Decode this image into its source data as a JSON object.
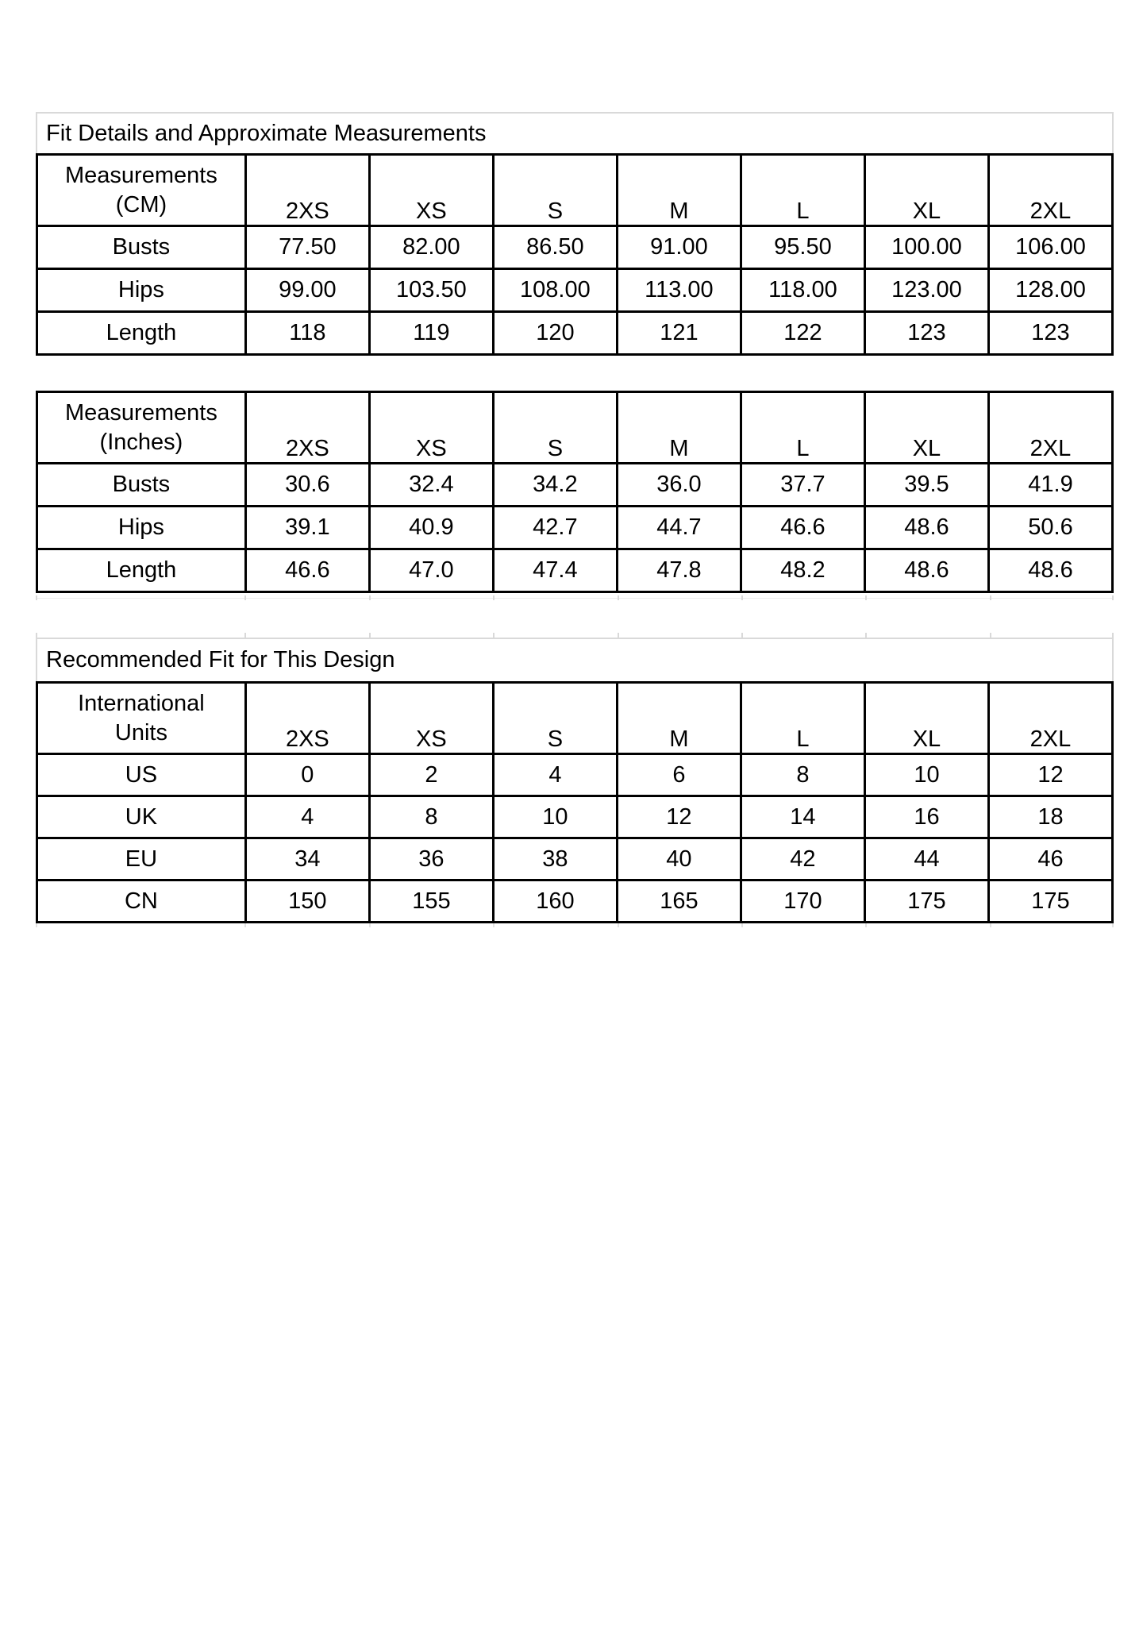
{
  "document": {
    "background": "#ffffff",
    "colors": {
      "table_border": "#000000",
      "title_box_border": "#d9d9d9",
      "gridline_remnant": "#ececec",
      "text": "#000000"
    }
  },
  "tables": [
    {
      "title": "Fit Details and Approximate Measurements",
      "header": {
        "line1": "Measurements",
        "line2": "(CM)"
      },
      "sizes": [
        "2XS",
        "XS",
        "S",
        "M",
        "L",
        "XL",
        "2XL"
      ],
      "rows": [
        {
          "label": "Busts",
          "values": [
            "77.50",
            "82.00",
            "86.50",
            "91.00",
            "95.50",
            "100.00",
            "106.00"
          ]
        },
        {
          "label": "Hips",
          "values": [
            "99.00",
            "103.50",
            "108.00",
            "113.00",
            "118.00",
            "123.00",
            "128.00"
          ]
        },
        {
          "label": "Length",
          "values": [
            "118",
            "119",
            "120",
            "121",
            "122",
            "123",
            "123"
          ]
        }
      ]
    },
    {
      "header": {
        "line1": "Measurements",
        "line2": "(Inches)"
      },
      "sizes": [
        "2XS",
        "XS",
        "S",
        "M",
        "L",
        "XL",
        "2XL"
      ],
      "rows": [
        {
          "label": "Busts",
          "values": [
            "30.6",
            "32.4",
            "34.2",
            "36.0",
            "37.7",
            "39.5",
            "41.9"
          ]
        },
        {
          "label": "Hips",
          "values": [
            "39.1",
            "40.9",
            "42.7",
            "44.7",
            "46.6",
            "48.6",
            "50.6"
          ]
        },
        {
          "label": "Length",
          "values": [
            "46.6",
            "47.0",
            "47.4",
            "47.8",
            "48.2",
            "48.6",
            "48.6"
          ]
        }
      ]
    },
    {
      "title": "Recommended Fit for This Design",
      "header": {
        "line1": "International",
        "line2": "Units"
      },
      "sizes": [
        "2XS",
        "XS",
        "S",
        "M",
        "L",
        "XL",
        "2XL"
      ],
      "rows": [
        {
          "label": "US",
          "values": [
            "0",
            "2",
            "4",
            "6",
            "8",
            "10",
            "12"
          ]
        },
        {
          "label": "UK",
          "values": [
            "4",
            "8",
            "10",
            "12",
            "14",
            "16",
            "18"
          ]
        },
        {
          "label": "EU",
          "values": [
            "34",
            "36",
            "38",
            "40",
            "42",
            "44",
            "46"
          ]
        },
        {
          "label": "CN",
          "values": [
            "150",
            "155",
            "160",
            "165",
            "170",
            "175",
            "175"
          ]
        }
      ]
    }
  ]
}
